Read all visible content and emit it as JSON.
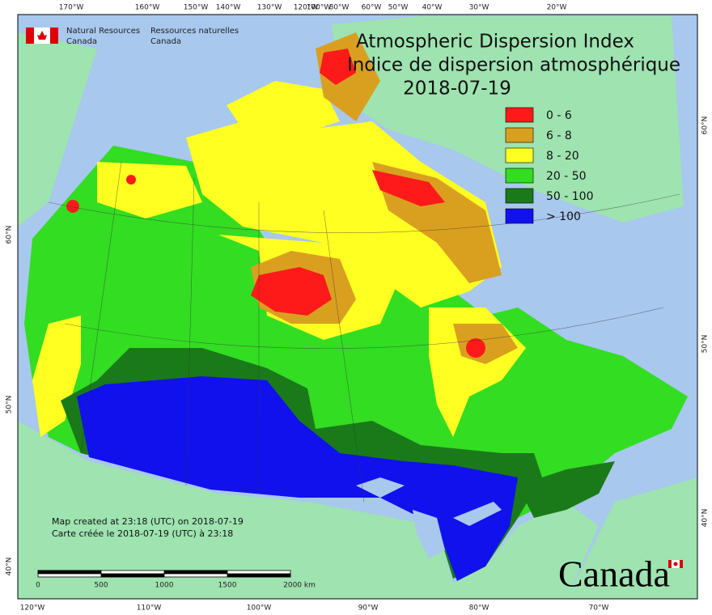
{
  "header": {
    "agency_en": [
      "Natural Resources",
      "Canada"
    ],
    "agency_fr": [
      "Ressources naturelles",
      "Canada"
    ]
  },
  "title": {
    "lines": [
      "Atmospheric Dispersion Index",
      "Indice de dispersion atmosphérique"
    ],
    "date": "2018-07-19"
  },
  "legend": [
    {
      "label": "0 - 6",
      "color": "#ff1a1a"
    },
    {
      "label": "6 - 8",
      "color": "#d9a020"
    },
    {
      "label": "8 - 20",
      "color": "#ffff22"
    },
    {
      "label": "20 - 50",
      "color": "#33dd22"
    },
    {
      "label": "50 - 100",
      "color": "#1a7a1a"
    },
    {
      "label": "> 100",
      "color": "#1111ee"
    }
  ],
  "axes": {
    "top": [
      "170°W",
      "160°W",
      "150°W",
      "140°W",
      "130°W",
      "120°W",
      "100°W",
      "80°W",
      "60°W",
      "50°W",
      "40°W",
      "30°W",
      "20°W"
    ],
    "bottom": [
      "120°W",
      "110°W",
      "100°W",
      "90°W",
      "80°W",
      "70°W"
    ],
    "left": [
      "60°N",
      "50°N",
      "40°N"
    ],
    "right": [
      "60°N",
      "50°N",
      "40°N"
    ]
  },
  "footnote": [
    "Map created at 23:18 (UTC) on 2018-07-19",
    "Carte créée le 2018-07-19 (UTC) à 23:18"
  ],
  "scale_bar": [
    "0",
    "500",
    "1000",
    "1500",
    "2000 km"
  ],
  "wordmark": "Canada"
}
